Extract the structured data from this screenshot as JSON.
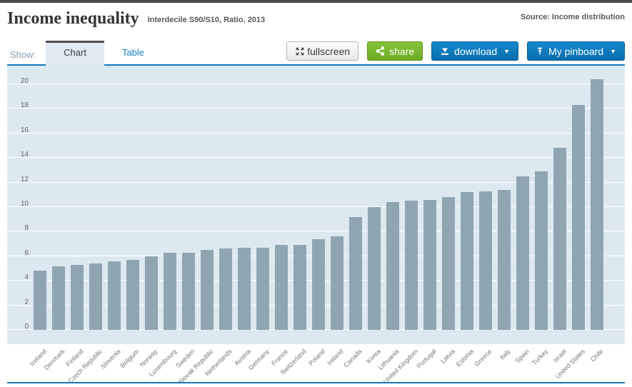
{
  "header": {
    "title": "Income inequality",
    "subtitle": "Interdecile S90/S10, Ratio, 2013",
    "source": "Source: Income distribution"
  },
  "toolbar": {
    "show_label": "Show:",
    "tabs": [
      {
        "label": "Chart",
        "active": true
      },
      {
        "label": "Table",
        "active": false
      }
    ],
    "buttons": {
      "fullscreen": "fullscreen",
      "share": "share",
      "download": "download",
      "pinboard": "My pinboard",
      "dropdown_arrow": "▼"
    },
    "icons": [
      "fullscreen-icon",
      "share-icon",
      "download-icon",
      "pin-icon"
    ]
  },
  "colors": {
    "accent_blue": "#1878b8",
    "button_blue": "#0d7cbd",
    "button_green": "#76b82a",
    "chart_background": "#dce9f1",
    "bar_color": "#8fa5b2",
    "gridline": "#ffffff",
    "topbar": "#4c4c4e",
    "tab_active_bg": "#dfeaf2",
    "link_blue": "#1a82c0"
  },
  "chart_data": {
    "type": "bar",
    "title": "Income inequality",
    "subtitle": "Interdecile S90/S10, Ratio, 2013",
    "xlabel": "",
    "ylabel": "",
    "ylim": [
      0,
      21.5
    ],
    "yticks": [
      0,
      2,
      4,
      6,
      8,
      10,
      12,
      14,
      16,
      18,
      20
    ],
    "grid": true,
    "legend": "none",
    "categories": [
      "Iceland",
      "Denmark",
      "Finland",
      "Czech Republic",
      "Slovenia",
      "Belgium",
      "Norway",
      "Luxembourg",
      "Sweden",
      "Slovak Republic",
      "Netherlands",
      "Austria",
      "Germany",
      "France",
      "Switzerland",
      "Poland",
      "Ireland",
      "Canada",
      "Korea",
      "Lithuania",
      "United Kingdom",
      "Portugal",
      "Latvia",
      "Estonia",
      "Greece",
      "Italy",
      "Spain",
      "Turkey",
      "Israel",
      "United States",
      "Chile"
    ],
    "values": [
      4.8,
      5.2,
      5.3,
      5.4,
      5.6,
      5.7,
      6.0,
      6.3,
      6.3,
      6.5,
      6.6,
      6.7,
      6.7,
      6.9,
      6.9,
      7.4,
      7.6,
      9.2,
      10.0,
      10.4,
      10.5,
      10.6,
      10.8,
      11.2,
      11.3,
      11.4,
      12.5,
      12.9,
      14.8,
      18.3,
      20.4
    ]
  }
}
